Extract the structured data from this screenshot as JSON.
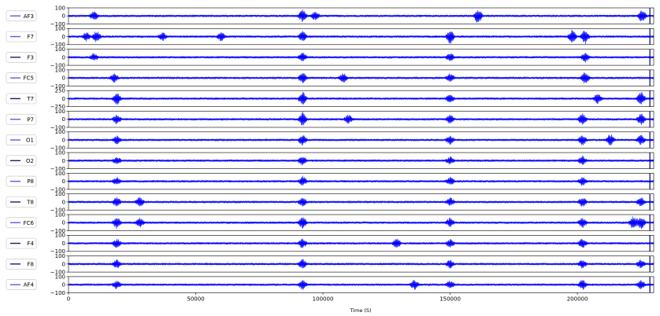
{
  "chart_data": {
    "type": "line",
    "xlabel": "Time (S)",
    "xlim": [
      0,
      230000
    ],
    "xticks": [
      0,
      50000,
      100000,
      150000,
      200000
    ],
    "xtick_labels": [
      "0",
      "50000",
      "100000",
      "150000",
      "200000"
    ],
    "vertical_marker_x": 228500,
    "legend_placement": "left of each subplot",
    "series_colors": {
      "light": "#5b5be6",
      "dark": "#1a1a6e",
      "signal": "#0000ff",
      "marker": "#000080"
    },
    "series": [
      {
        "name": "AF3",
        "legend_color": "light",
        "ylim": [
          -100,
          100
        ],
        "yticks": [
          "100",
          "0",
          "−100"
        ],
        "bursts": [
          [
            10000,
            1.3
          ],
          [
            92000,
            1.6
          ],
          [
            97000,
            1.2
          ],
          [
            161000,
            2.2
          ],
          [
            225500,
            1.8
          ]
        ]
      },
      {
        "name": "F7",
        "legend_color": "light",
        "ylim": [
          -100,
          100
        ],
        "yticks": [
          "100",
          "0",
          "−100"
        ],
        "bursts": [
          [
            7000,
            1.2
          ],
          [
            11000,
            1.6
          ],
          [
            37000,
            1.1
          ],
          [
            60000,
            1.3
          ],
          [
            92000,
            1.4
          ],
          [
            150000,
            2.0
          ],
          [
            198000,
            1.8
          ],
          [
            203000,
            2.0
          ]
        ]
      },
      {
        "name": "F3",
        "legend_color": "dark",
        "ylim": [
          -100,
          100
        ],
        "yticks": [
          "100",
          "0",
          "−100"
        ],
        "bursts": [
          [
            10000,
            1.0
          ],
          [
            92000,
            1.2
          ],
          [
            150000,
            1.1
          ],
          [
            203000,
            1.3
          ]
        ]
      },
      {
        "name": "FC5",
        "legend_color": "light",
        "ylim": [
          -100,
          100
        ],
        "yticks": [
          "100",
          "0",
          "−100"
        ],
        "bursts": [
          [
            18000,
            1.2
          ],
          [
            92000,
            1.5
          ],
          [
            108000,
            1.3
          ],
          [
            150000,
            1.2
          ],
          [
            203000,
            1.6
          ]
        ]
      },
      {
        "name": "T7",
        "legend_color": "dark",
        "ylim": [
          -250,
          250
        ],
        "yticks": [
          "250",
          "0",
          "−250"
        ],
        "bursts": [
          [
            19000,
            1.6
          ],
          [
            92000,
            1.8
          ],
          [
            150000,
            1.2
          ],
          [
            208000,
            1.4
          ],
          [
            225000,
            1.8
          ]
        ]
      },
      {
        "name": "P7",
        "legend_color": "light",
        "ylim": [
          -100,
          100
        ],
        "yticks": [
          "100",
          "0",
          "−100"
        ],
        "bursts": [
          [
            19000,
            1.3
          ],
          [
            92000,
            1.9
          ],
          [
            110000,
            1.2
          ],
          [
            150000,
            1.2
          ],
          [
            202000,
            1.6
          ],
          [
            225000,
            1.6
          ]
        ]
      },
      {
        "name": "O1",
        "legend_color": "light",
        "ylim": [
          -100,
          100
        ],
        "yticks": [
          "100",
          "0",
          "−100"
        ],
        "bursts": [
          [
            19000,
            1.1
          ],
          [
            92000,
            1.5
          ],
          [
            150000,
            1.2
          ],
          [
            202000,
            1.4
          ],
          [
            213000,
            1.6
          ],
          [
            225000,
            1.3
          ]
        ]
      },
      {
        "name": "O2",
        "legend_color": "dark",
        "ylim": [
          -100,
          100
        ],
        "yticks": [
          "100",
          "0",
          "−100"
        ],
        "bursts": [
          [
            19000,
            1.0
          ],
          [
            92000,
            1.2
          ],
          [
            150000,
            1.0
          ],
          [
            202000,
            1.2
          ]
        ]
      },
      {
        "name": "P8",
        "legend_color": "light",
        "ylim": [
          -100,
          100
        ],
        "yticks": [
          "100",
          "0",
          "−100"
        ],
        "bursts": [
          [
            19000,
            1.0
          ],
          [
            92000,
            1.3
          ],
          [
            150000,
            1.0
          ],
          [
            202000,
            1.2
          ]
        ]
      },
      {
        "name": "T8",
        "legend_color": "dark",
        "ylim": [
          -100,
          100
        ],
        "yticks": [
          "100",
          "0",
          "−100"
        ],
        "bursts": [
          [
            19000,
            1.3
          ],
          [
            28000,
            1.3
          ],
          [
            92000,
            1.3
          ],
          [
            150000,
            1.1
          ],
          [
            202000,
            1.3
          ],
          [
            225000,
            1.2
          ]
        ]
      },
      {
        "name": "FC6",
        "legend_color": "light",
        "ylim": [
          -100,
          100
        ],
        "yticks": [
          "100",
          "0",
          "−100"
        ],
        "bursts": [
          [
            19000,
            1.6
          ],
          [
            28000,
            1.3
          ],
          [
            92000,
            1.5
          ],
          [
            150000,
            1.2
          ],
          [
            202000,
            1.4
          ],
          [
            222000,
            1.8
          ],
          [
            225000,
            1.8
          ]
        ]
      },
      {
        "name": "F4",
        "legend_color": "dark",
        "ylim": [
          -100,
          100
        ],
        "yticks": [
          "100",
          "0",
          "−100"
        ],
        "bursts": [
          [
            19000,
            1.2
          ],
          [
            92000,
            1.3
          ],
          [
            129000,
            1.4
          ],
          [
            150000,
            1.1
          ],
          [
            202000,
            1.3
          ]
        ]
      },
      {
        "name": "F8",
        "legend_color": "dark",
        "ylim": [
          -100,
          100
        ],
        "yticks": [
          "100",
          "0",
          "−100"
        ],
        "bursts": [
          [
            19000,
            1.2
          ],
          [
            92000,
            1.3
          ],
          [
            150000,
            1.1
          ],
          [
            202000,
            1.2
          ],
          [
            225000,
            1.2
          ]
        ]
      },
      {
        "name": "AF4",
        "legend_color": "light",
        "ylim": [
          -100,
          100
        ],
        "yticks": [
          "100",
          "0",
          "−100"
        ],
        "bursts": [
          [
            19000,
            1.2
          ],
          [
            92000,
            1.3
          ],
          [
            136000,
            1.3
          ],
          [
            150000,
            1.1
          ],
          [
            202000,
            1.3
          ],
          [
            225000,
            1.2
          ]
        ]
      }
    ]
  }
}
